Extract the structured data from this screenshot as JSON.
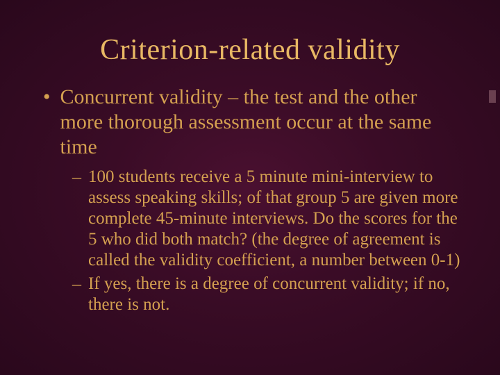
{
  "slide": {
    "title": "Criterion-related validity",
    "bullets": [
      {
        "level": 1,
        "text": "Concurrent validity – the test and the other more thorough assessment occur at the same time"
      },
      {
        "level": 2,
        "text": "100 students receive a 5 minute mini-interview to assess speaking skills; of that group 5 are given more complete 45-minute interviews. Do the scores for the 5 who did both match? (the degree of agreement is called the validity coefficient, a number between 0-1)"
      },
      {
        "level": 2,
        "text": "If yes, there is a degree of concurrent validity; if no, there is not."
      }
    ],
    "colors": {
      "background_center": "#4a1030",
      "background_edge": "#2a081c",
      "title_color": "#e8b864",
      "text_color": "#d4a050",
      "accent_bar": "#6a4050"
    },
    "typography": {
      "title_fontsize": 42,
      "body_l1_fontsize": 30,
      "body_l2_fontsize": 25,
      "font_family": "Times New Roman"
    }
  }
}
